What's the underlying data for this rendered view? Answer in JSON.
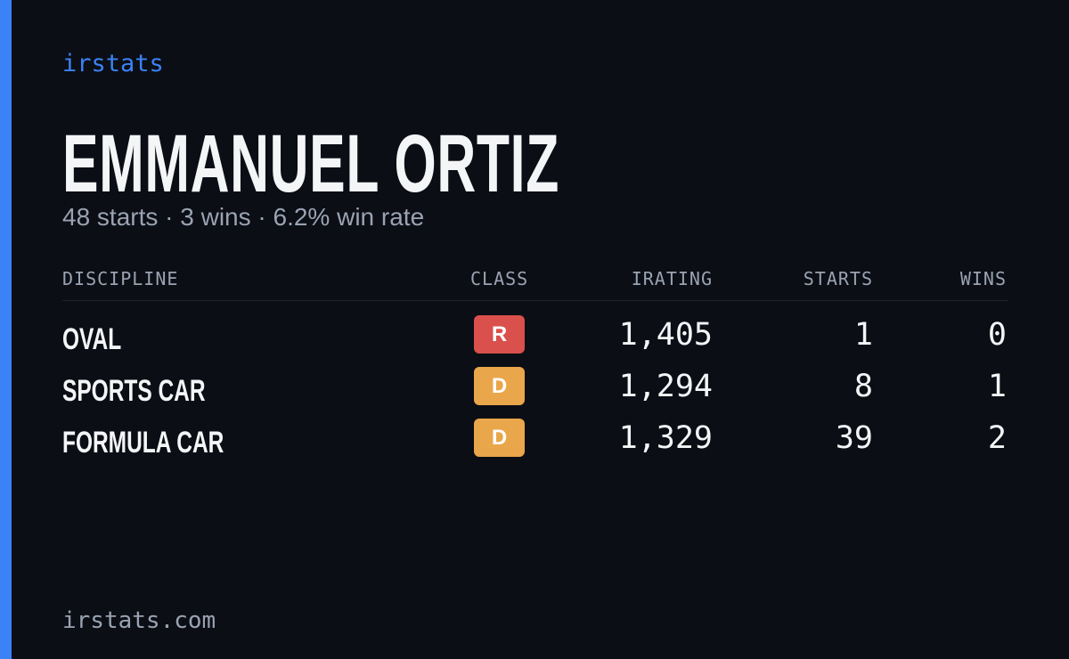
{
  "brand": "irstats",
  "driver": {
    "name": "EMMANUEL ORTIZ",
    "summary": "48 starts · 3 wins · 6.2% win rate"
  },
  "table": {
    "headers": [
      "DISCIPLINE",
      "CLASS",
      "IRATING",
      "STARTS",
      "WINS"
    ],
    "rows": [
      {
        "discipline": "OVAL",
        "class": {
          "label": "R",
          "color": "#d9504c"
        },
        "irating": "1,405",
        "starts": "1",
        "wins": "0"
      },
      {
        "discipline": "SPORTS CAR",
        "class": {
          "label": "D",
          "color": "#eaa64a"
        },
        "irating": "1,294",
        "starts": "8",
        "wins": "1"
      },
      {
        "discipline": "FORMULA CAR",
        "class": {
          "label": "D",
          "color": "#eaa64a"
        },
        "irating": "1,329",
        "starts": "39",
        "wins": "2"
      }
    ]
  },
  "footer": "irstats.com"
}
